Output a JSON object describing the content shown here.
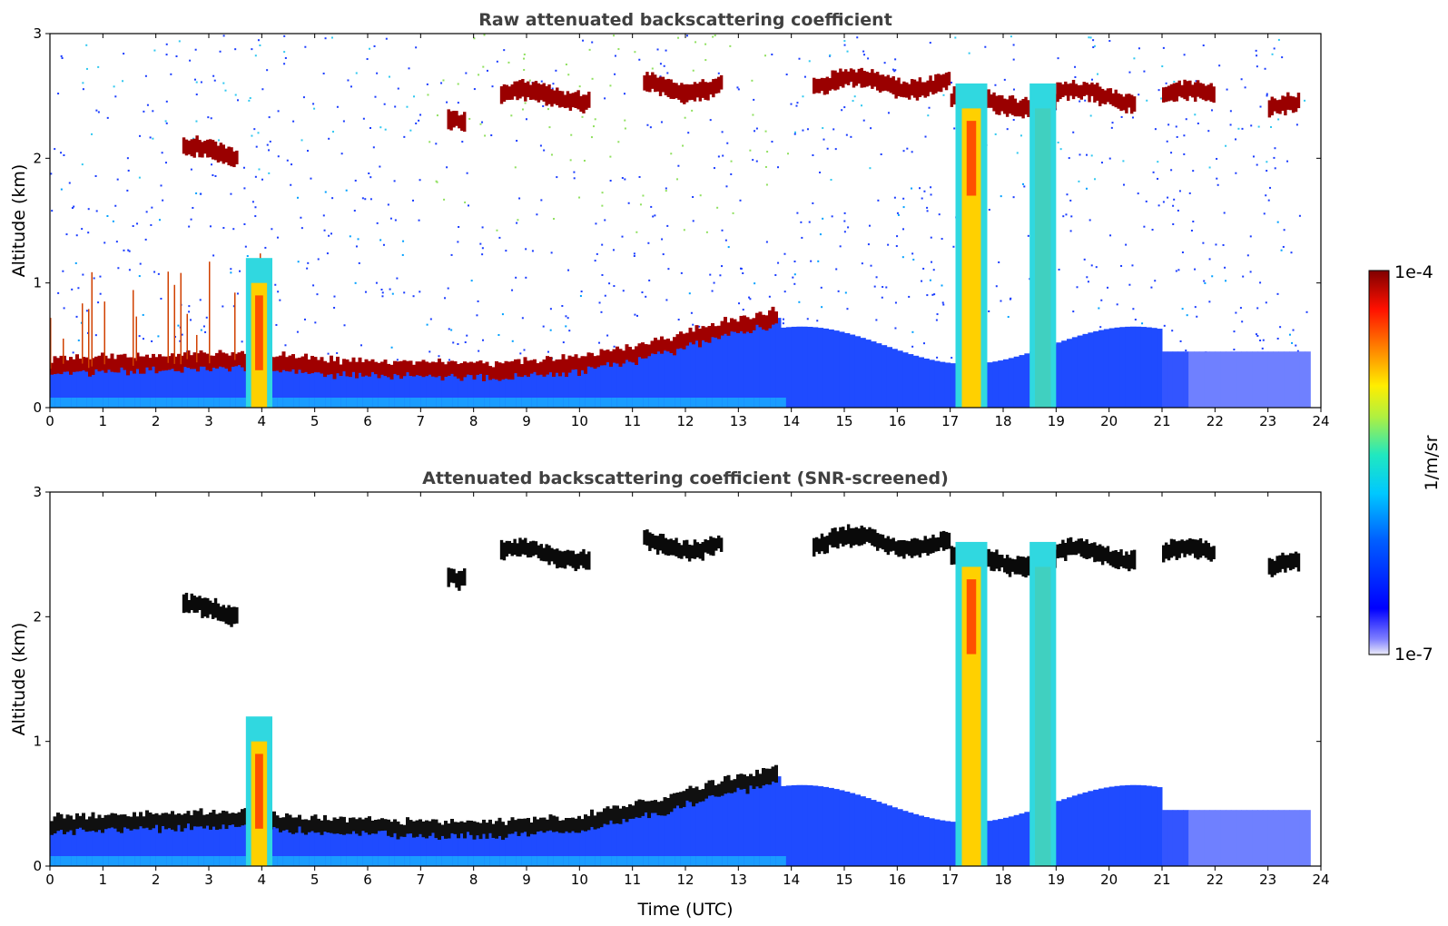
{
  "chart_data": [
    {
      "type": "heatmap",
      "title": "Raw attenuated backscattering coefficient",
      "xlabel": "",
      "ylabel": "Altitude (km)",
      "xlim": [
        0,
        24
      ],
      "ylim": [
        0,
        3
      ],
      "xticks": [
        "0",
        "1",
        "2",
        "3",
        "4",
        "5",
        "6",
        "7",
        "8",
        "9",
        "10",
        "11",
        "12",
        "13",
        "14",
        "15",
        "16",
        "17",
        "18",
        "19",
        "20",
        "21",
        "22",
        "23",
        "24"
      ],
      "yticks": [
        "0",
        "1",
        "2",
        "3"
      ],
      "screened": false,
      "features": {
        "boundary_layer_top_km": [
          {
            "t": 0,
            "z": 0.33
          },
          {
            "t": 2,
            "z": 0.36
          },
          {
            "t": 3.5,
            "z": 0.38
          },
          {
            "t": 5,
            "z": 0.33
          },
          {
            "t": 7,
            "z": 0.3
          },
          {
            "t": 8.5,
            "z": 0.3
          },
          {
            "t": 10,
            "z": 0.35
          },
          {
            "t": 11.5,
            "z": 0.48
          },
          {
            "t": 12.5,
            "z": 0.62
          },
          {
            "t": 13.7,
            "z": 0.72
          }
        ],
        "elevated_cloud_layers": [
          {
            "t_start": 2.5,
            "t_end": 3.5,
            "z": 2.05
          },
          {
            "t_start": 7.5,
            "t_end": 7.8,
            "z": 2.35
          },
          {
            "t_start": 8.5,
            "t_end": 10.2,
            "z": 2.5
          },
          {
            "t_start": 11.2,
            "t_end": 12.7,
            "z": 2.58
          },
          {
            "t_start": 14.4,
            "t_end": 17.0,
            "z": 2.6
          },
          {
            "t_start": 17.0,
            "t_end": 19.0,
            "z": 2.45
          },
          {
            "t_start": 19.0,
            "t_end": 20.5,
            "z": 2.5
          },
          {
            "t_start": 21.0,
            "t_end": 22.0,
            "z": 2.5
          },
          {
            "t_start": 23.0,
            "t_end": 23.6,
            "z": 2.4
          }
        ],
        "precipitation_columns": [
          {
            "t_start": 3.7,
            "t_end": 4.2
          },
          {
            "t_start": 17.1,
            "t_end": 17.7
          },
          {
            "t_start": 18.5,
            "t_end": 19.0
          }
        ]
      }
    },
    {
      "type": "heatmap",
      "title": "Attenuated backscattering coefficient (SNR-screened)",
      "xlabel": "Time (UTC)",
      "ylabel": "Altitude (km)",
      "xlim": [
        0,
        24
      ],
      "ylim": [
        0,
        3
      ],
      "xticks": [
        "0",
        "1",
        "2",
        "3",
        "4",
        "5",
        "6",
        "7",
        "8",
        "9",
        "10",
        "11",
        "12",
        "13",
        "14",
        "15",
        "16",
        "17",
        "18",
        "19",
        "20",
        "21",
        "22",
        "23",
        "24"
      ],
      "yticks": [
        "0",
        "1",
        "2",
        "3"
      ],
      "screened": true
    }
  ],
  "colorbar": {
    "label": "1/m/sr",
    "max_label": "1e-4",
    "min_label": "1e-7",
    "scale": "log",
    "colormap": "jet",
    "colors": [
      "#e8e8f8",
      "#0000ff",
      "#00bfff",
      "#00e5c0",
      "#ffff00",
      "#ff8000",
      "#ff0000",
      "#800000"
    ]
  }
}
